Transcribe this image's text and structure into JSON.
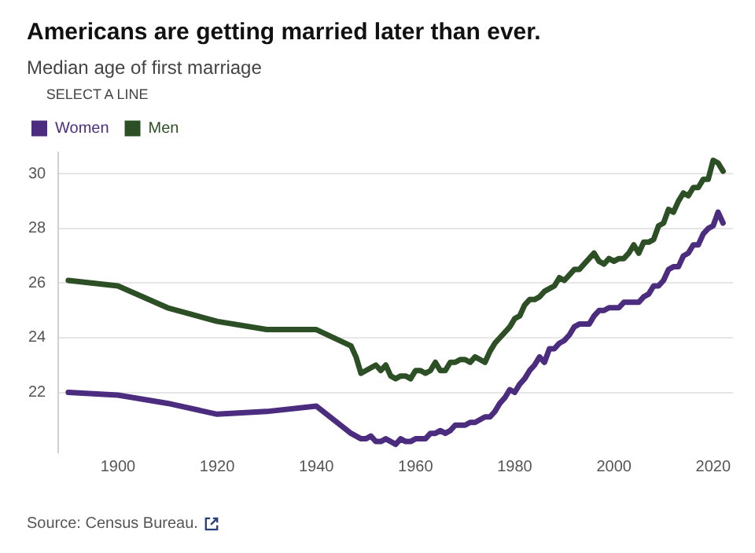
{
  "chart_data": {
    "type": "line",
    "title": "Americans are getting married later than ever.",
    "subtitle": "Median age of first marriage",
    "legend_title": "SELECT A LINE",
    "x": [
      1890,
      1900,
      1910,
      1920,
      1930,
      1940,
      1947,
      1948,
      1949,
      1950,
      1951,
      1952,
      1953,
      1954,
      1955,
      1956,
      1957,
      1958,
      1959,
      1960,
      1961,
      1962,
      1963,
      1964,
      1965,
      1966,
      1967,
      1968,
      1969,
      1970,
      1971,
      1972,
      1973,
      1974,
      1975,
      1976,
      1977,
      1978,
      1979,
      1980,
      1981,
      1982,
      1983,
      1984,
      1985,
      1986,
      1987,
      1988,
      1989,
      1990,
      1991,
      1992,
      1993,
      1994,
      1995,
      1996,
      1997,
      1998,
      1999,
      2000,
      2001,
      2002,
      2003,
      2004,
      2005,
      2006,
      2007,
      2008,
      2009,
      2010,
      2011,
      2012,
      2013,
      2014,
      2015,
      2016,
      2017,
      2018,
      2019,
      2020,
      2021,
      2022
    ],
    "series": [
      {
        "name": "Women",
        "color": "#4b2c7f",
        "values": [
          22.0,
          21.9,
          21.6,
          21.2,
          21.3,
          21.5,
          20.5,
          20.4,
          20.3,
          20.3,
          20.4,
          20.2,
          20.2,
          20.3,
          20.2,
          20.1,
          20.3,
          20.2,
          20.2,
          20.3,
          20.3,
          20.3,
          20.5,
          20.5,
          20.6,
          20.5,
          20.6,
          20.8,
          20.8,
          20.8,
          20.9,
          20.9,
          21.0,
          21.1,
          21.1,
          21.3,
          21.6,
          21.8,
          22.1,
          22.0,
          22.3,
          22.5,
          22.8,
          23.0,
          23.3,
          23.1,
          23.6,
          23.6,
          23.8,
          23.9,
          24.1,
          24.4,
          24.5,
          24.5,
          24.5,
          24.8,
          25.0,
          25.0,
          25.1,
          25.1,
          25.1,
          25.3,
          25.3,
          25.3,
          25.3,
          25.5,
          25.6,
          25.9,
          25.9,
          26.1,
          26.5,
          26.6,
          26.6,
          27.0,
          27.1,
          27.4,
          27.4,
          27.8,
          28.0,
          28.1,
          28.6,
          28.2
        ]
      },
      {
        "name": "Men",
        "color": "#2d4f26",
        "values": [
          26.1,
          25.9,
          25.1,
          24.6,
          24.3,
          24.3,
          23.7,
          23.3,
          22.7,
          22.8,
          22.9,
          23.0,
          22.8,
          23.0,
          22.6,
          22.5,
          22.6,
          22.6,
          22.5,
          22.8,
          22.8,
          22.7,
          22.8,
          23.1,
          22.8,
          22.8,
          23.1,
          23.1,
          23.2,
          23.2,
          23.1,
          23.3,
          23.2,
          23.1,
          23.5,
          23.8,
          24.0,
          24.2,
          24.4,
          24.7,
          24.8,
          25.2,
          25.4,
          25.4,
          25.5,
          25.7,
          25.8,
          25.9,
          26.2,
          26.1,
          26.3,
          26.5,
          26.5,
          26.7,
          26.9,
          27.1,
          26.8,
          26.7,
          26.9,
          26.8,
          26.9,
          26.9,
          27.1,
          27.4,
          27.1,
          27.5,
          27.5,
          27.6,
          28.1,
          28.2,
          28.7,
          28.6,
          29.0,
          29.3,
          29.2,
          29.5,
          29.5,
          29.8,
          29.8,
          30.5,
          30.4,
          30.1
        ]
      }
    ],
    "xlim": [
      1888,
      2024
    ],
    "xticks": [
      1900,
      1920,
      1940,
      1960,
      1980,
      2000,
      2020
    ],
    "ylim": [
      19.8,
      30.8
    ],
    "yticks": [
      22,
      24,
      26,
      28,
      30
    ],
    "grid": "y",
    "legend": "top left",
    "marker": "none",
    "line_style": "solid",
    "annotations": [
      "Source: Census Bureau."
    ]
  }
}
